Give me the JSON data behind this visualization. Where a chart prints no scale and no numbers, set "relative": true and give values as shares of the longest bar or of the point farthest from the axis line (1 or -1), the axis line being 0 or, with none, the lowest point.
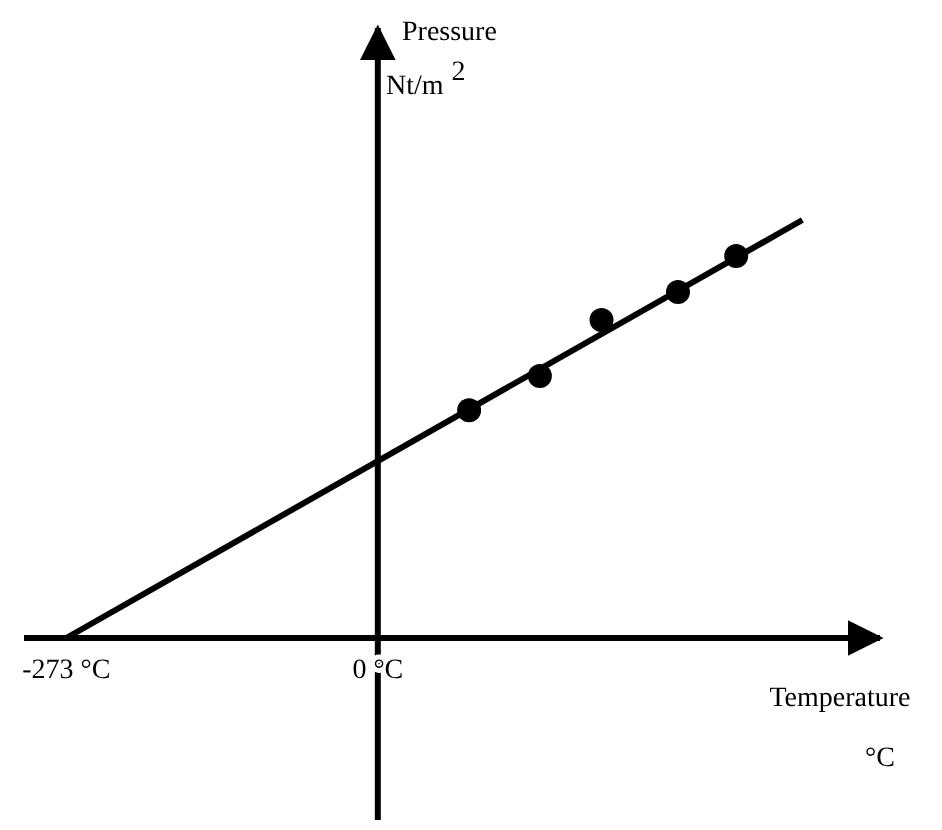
{
  "chart_data": {
    "type": "scatter",
    "relative": true,
    "xlabel": "Temperature °C",
    "ylabel": "Pressure Nt/m$^{2}$",
    "xlim": [
      -310,
      440
    ],
    "xticks": [
      {
        "value": -273,
        "label": "-273 °C"
      },
      {
        "value": 0,
        "label": "0 °C"
      }
    ],
    "marker": "circle",
    "series": [
      {
        "type": "line",
        "marker": "none",
        "color": "#000000",
        "x": [
          -273,
          372
        ],
        "values": [
          0,
          1
        ]
      },
      {
        "color": "#000000",
        "x": [
          80,
          142,
          196,
          263,
          314
        ],
        "values": [
          0.545,
          0.627,
          0.761,
          0.828,
          0.914
        ]
      }
    ]
  }
}
